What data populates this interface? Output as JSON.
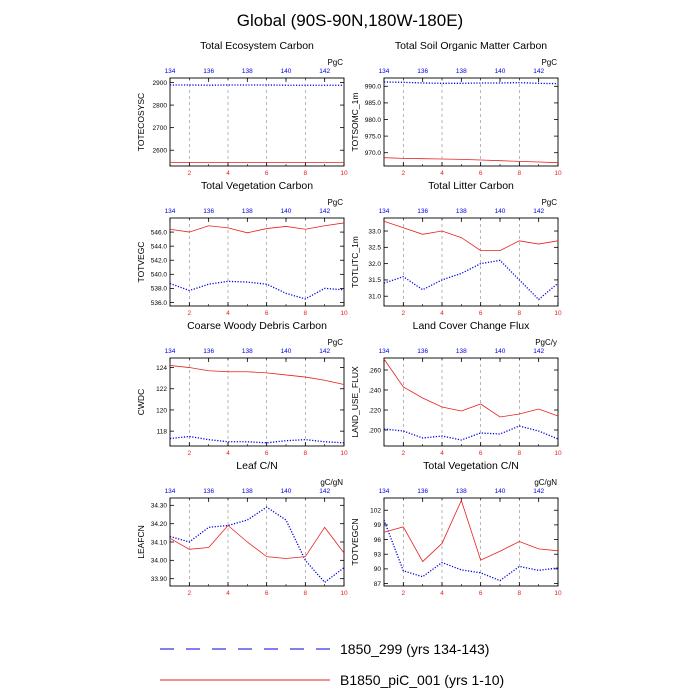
{
  "figure": {
    "title": "Global (90S-90N,180W-180E)",
    "colors": {
      "red": "#e82020",
      "blue": "#0000e0",
      "grid": "#888888"
    },
    "legend": [
      {
        "name": "1850_299 (yrs 134-143)",
        "color": "#0000e0",
        "style": "dashed"
      },
      {
        "name": "B1850_piC_001 (yrs 1-10)",
        "color": "#e82020",
        "style": "solid"
      }
    ]
  },
  "chart_data": [
    {
      "type": "line",
      "title": "Total Ecosystem Carbon",
      "ylabel": "TOTECOSYSC",
      "units": "PgC",
      "x_bottom": [
        1,
        2,
        3,
        4,
        5,
        6,
        7,
        8,
        9,
        10
      ],
      "x_top": [
        134,
        135,
        136,
        137,
        138,
        139,
        140,
        141,
        142,
        143
      ],
      "bottom_ticks": [
        2,
        4,
        6,
        8,
        10
      ],
      "top_ticks": [
        134,
        136,
        138,
        140,
        142
      ],
      "ylim": [
        2530,
        2920
      ],
      "yticks": [
        2600,
        2700,
        2800,
        2900
      ],
      "ytick_labels": [
        "2600",
        "2700",
        "2800",
        "2900"
      ],
      "series": [
        {
          "name": "1850_299 (yrs 134-143)",
          "values": [
            2889,
            2889,
            2888,
            2889,
            2889,
            2889,
            2888,
            2888,
            2888,
            2888
          ]
        },
        {
          "name": "B1850_piC_001 (yrs 1-10)",
          "values": [
            2546,
            2545,
            2545,
            2545,
            2545,
            2545,
            2545,
            2545,
            2545,
            2545
          ]
        }
      ]
    },
    {
      "type": "line",
      "title": "Total Soil Organic Matter Carbon",
      "ylabel": "TOTSOMC_1m",
      "units": "PgC",
      "x_bottom": [
        1,
        2,
        3,
        4,
        5,
        6,
        7,
        8,
        9,
        10
      ],
      "x_top": [
        134,
        135,
        136,
        137,
        138,
        139,
        140,
        141,
        142,
        143
      ],
      "bottom_ticks": [
        2,
        4,
        6,
        8,
        10
      ],
      "top_ticks": [
        134,
        136,
        138,
        140,
        142
      ],
      "ylim": [
        966,
        992.5
      ],
      "yticks": [
        970,
        975,
        980,
        985,
        990
      ],
      "ytick_labels": [
        "970.0",
        "975.0",
        "980.0",
        "985.0",
        "990.0"
      ],
      "series": [
        {
          "name": "1850_299 (yrs 134-143)",
          "values": [
            991.3,
            991.2,
            991.0,
            990.9,
            990.9,
            991.0,
            991.0,
            991.1,
            990.9,
            990.8
          ]
        },
        {
          "name": "B1850_piC_001 (yrs 1-10)",
          "values": [
            968.5,
            968.3,
            968.2,
            968.1,
            968.0,
            967.8,
            967.6,
            967.4,
            967.2,
            967.0
          ]
        }
      ]
    },
    {
      "type": "line",
      "title": "Total Vegetation Carbon",
      "ylabel": "TOTVEGC",
      "units": "PgC",
      "x_bottom": [
        1,
        2,
        3,
        4,
        5,
        6,
        7,
        8,
        9,
        10
      ],
      "x_top": [
        134,
        135,
        136,
        137,
        138,
        139,
        140,
        141,
        142,
        143
      ],
      "bottom_ticks": [
        2,
        4,
        6,
        8,
        10
      ],
      "top_ticks": [
        134,
        136,
        138,
        140,
        142
      ],
      "ylim": [
        535.5,
        548
      ],
      "yticks": [
        536,
        538,
        540,
        542,
        544,
        546
      ],
      "ytick_labels": [
        "536.0",
        "538.0",
        "540.0",
        "542.0",
        "544.0",
        "546.0"
      ],
      "series": [
        {
          "name": "1850_299 (yrs 134-143)",
          "values": [
            538.7,
            537.7,
            538.6,
            539.0,
            538.9,
            538.6,
            537.3,
            536.5,
            538.0,
            537.8
          ]
        },
        {
          "name": "B1850_piC_001 (yrs 1-10)",
          "values": [
            546.4,
            546.0,
            546.9,
            546.6,
            545.9,
            546.5,
            546.8,
            546.4,
            546.9,
            547.3
          ]
        }
      ]
    },
    {
      "type": "line",
      "title": "Total Litter Carbon",
      "ylabel": "TOTLITC_1m",
      "units": "PgC",
      "x_bottom": [
        1,
        2,
        3,
        4,
        5,
        6,
        7,
        8,
        9,
        10
      ],
      "x_top": [
        134,
        135,
        136,
        137,
        138,
        139,
        140,
        141,
        142,
        143
      ],
      "bottom_ticks": [
        2,
        4,
        6,
        8,
        10
      ],
      "top_ticks": [
        134,
        136,
        138,
        140,
        142
      ],
      "ylim": [
        30.7,
        33.4
      ],
      "yticks": [
        31.0,
        31.5,
        32.0,
        32.5,
        33.0
      ],
      "ytick_labels": [
        "31.0",
        "31.5",
        "32.0",
        "32.5",
        "33.0"
      ],
      "series": [
        {
          "name": "1850_299 (yrs 134-143)",
          "values": [
            31.4,
            31.6,
            31.2,
            31.5,
            31.7,
            32.0,
            32.1,
            31.5,
            30.9,
            31.4
          ]
        },
        {
          "name": "B1850_piC_001 (yrs 1-10)",
          "values": [
            33.3,
            33.1,
            32.9,
            33.0,
            32.8,
            32.4,
            32.4,
            32.7,
            32.6,
            32.7
          ]
        }
      ]
    },
    {
      "type": "line",
      "title": "Coarse Woody Debris Carbon",
      "ylabel": "CWDC",
      "units": "PgC",
      "x_bottom": [
        1,
        2,
        3,
        4,
        5,
        6,
        7,
        8,
        9,
        10
      ],
      "x_top": [
        134,
        135,
        136,
        137,
        138,
        139,
        140,
        141,
        142,
        143
      ],
      "bottom_ticks": [
        2,
        4,
        6,
        8,
        10
      ],
      "top_ticks": [
        134,
        136,
        138,
        140,
        142
      ],
      "ylim": [
        116.6,
        124.9
      ],
      "yticks": [
        118,
        120,
        122,
        124
      ],
      "ytick_labels": [
        "118",
        "120",
        "122",
        "124"
      ],
      "series": [
        {
          "name": "1850_299 (yrs 134-143)",
          "values": [
            117.3,
            117.5,
            117.2,
            117.0,
            117.0,
            116.9,
            117.1,
            117.2,
            117.0,
            116.9
          ]
        },
        {
          "name": "B1850_piC_001 (yrs 1-10)",
          "values": [
            124.2,
            124.0,
            123.7,
            123.6,
            123.6,
            123.5,
            123.3,
            123.1,
            122.8,
            122.4
          ]
        }
      ]
    },
    {
      "type": "line",
      "title": "Land Cover Change Flux",
      "ylabel": "LAND_USE_FLUX",
      "units": "PgC/y",
      "x_bottom": [
        1,
        2,
        3,
        4,
        5,
        6,
        7,
        8,
        9,
        10
      ],
      "x_top": [
        134,
        135,
        136,
        137,
        138,
        139,
        140,
        141,
        142,
        143
      ],
      "bottom_ticks": [
        2,
        4,
        6,
        8,
        10
      ],
      "top_ticks": [
        134,
        136,
        138,
        140,
        142
      ],
      "ylim": [
        0.184,
        0.272
      ],
      "yticks": [
        0.2,
        0.22,
        0.24,
        0.26
      ],
      "ytick_labels": [
        ".200",
        ".220",
        ".240",
        ".260"
      ],
      "series": [
        {
          "name": "1850_299 (yrs 134-143)",
          "values": [
            0.201,
            0.199,
            0.192,
            0.194,
            0.19,
            0.197,
            0.196,
            0.204,
            0.199,
            0.191
          ]
        },
        {
          "name": "B1850_piC_001 (yrs 1-10)",
          "values": [
            0.271,
            0.243,
            0.232,
            0.223,
            0.219,
            0.226,
            0.213,
            0.216,
            0.221,
            0.214
          ]
        }
      ]
    },
    {
      "type": "line",
      "title": "Leaf C/N",
      "ylabel": "LEAFCN",
      "units": "gC/gN",
      "x_bottom": [
        1,
        2,
        3,
        4,
        5,
        6,
        7,
        8,
        9,
        10
      ],
      "x_top": [
        134,
        135,
        136,
        137,
        138,
        139,
        140,
        141,
        142,
        143
      ],
      "bottom_ticks": [
        2,
        4,
        6,
        8,
        10
      ],
      "top_ticks": [
        134,
        136,
        138,
        140,
        142
      ],
      "ylim": [
        33.86,
        34.34
      ],
      "yticks": [
        33.9,
        34.0,
        34.1,
        34.2,
        34.3
      ],
      "ytick_labels": [
        "33.90",
        "34.00",
        "34.10",
        "34.20",
        "34.30"
      ],
      "series": [
        {
          "name": "1850_299 (yrs 134-143)",
          "values": [
            34.13,
            34.1,
            34.18,
            34.19,
            34.22,
            34.29,
            34.22,
            34.0,
            33.88,
            33.96
          ]
        },
        {
          "name": "B1850_piC_001 (yrs 1-10)",
          "values": [
            34.12,
            34.06,
            34.07,
            34.19,
            34.1,
            34.02,
            34.01,
            34.02,
            34.18,
            34.04
          ]
        }
      ]
    },
    {
      "type": "line",
      "title": "Total Vegetation C/N",
      "ylabel": "TOTVEGCN",
      "units": "gC/gN",
      "x_bottom": [
        1,
        2,
        3,
        4,
        5,
        6,
        7,
        8,
        9,
        10
      ],
      "x_top": [
        134,
        135,
        136,
        137,
        138,
        139,
        140,
        141,
        142,
        143
      ],
      "bottom_ticks": [
        2,
        4,
        6,
        8,
        10
      ],
      "top_ticks": [
        134,
        136,
        138,
        140,
        142
      ],
      "ylim": [
        86.5,
        104.5
      ],
      "yticks": [
        87,
        90,
        93,
        96,
        99,
        102
      ],
      "ytick_labels": [
        "87",
        "90",
        "93",
        "96",
        "99",
        "102"
      ],
      "series": [
        {
          "name": "1850_299 (yrs 134-143)",
          "values": [
            100.0,
            89.6,
            88.4,
            91.3,
            89.8,
            89.2,
            87.6,
            90.5,
            89.7,
            90.2
          ]
        },
        {
          "name": "B1850_piC_001 (yrs 1-10)",
          "values": [
            97.5,
            98.6,
            91.5,
            95.2,
            104.0,
            91.8,
            93.6,
            95.6,
            94.1,
            93.7
          ]
        }
      ]
    }
  ]
}
